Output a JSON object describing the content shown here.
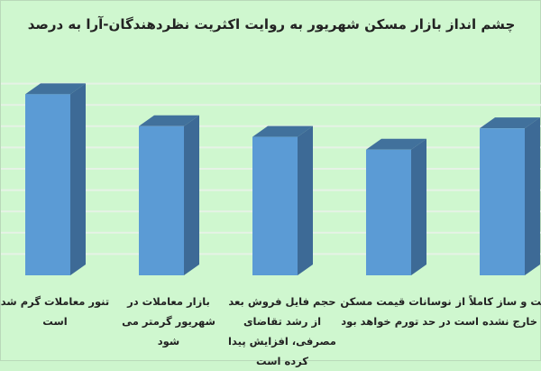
{
  "chart_data": {
    "type": "bar",
    "style": "3d-column",
    "title": "چشم انداز بازار مسکن شهریور به روایت اکثریت نظردهندگان-آرا به درصد",
    "xlabel": "",
    "ylabel": "",
    "categories": [
      "تنور معاملات گرم شد است",
      "بازار معاملات در شهریور گرمتر می شود",
      "حجم فایل فروش بعد از رشد تقاضای مصرفی، افزایش پیدا کرده است",
      "نوسانات قیمت مسکن در حد تورم خواهد بود",
      "ساخت و ساز کاملاً از رکود خارج نشده است"
    ],
    "values": [
      8.5,
      7.0,
      6.5,
      5.9,
      6.9
    ],
    "ylim": [
      0,
      9.5
    ],
    "y_ticks_labeled": false,
    "grid": true,
    "legend": "none",
    "colors": {
      "bar_front": "#5b9bd5",
      "bar_side": "#3d6a96",
      "bar_top": "#41719c",
      "background": "#cff7cf",
      "grid": "#e6f2e6"
    }
  }
}
